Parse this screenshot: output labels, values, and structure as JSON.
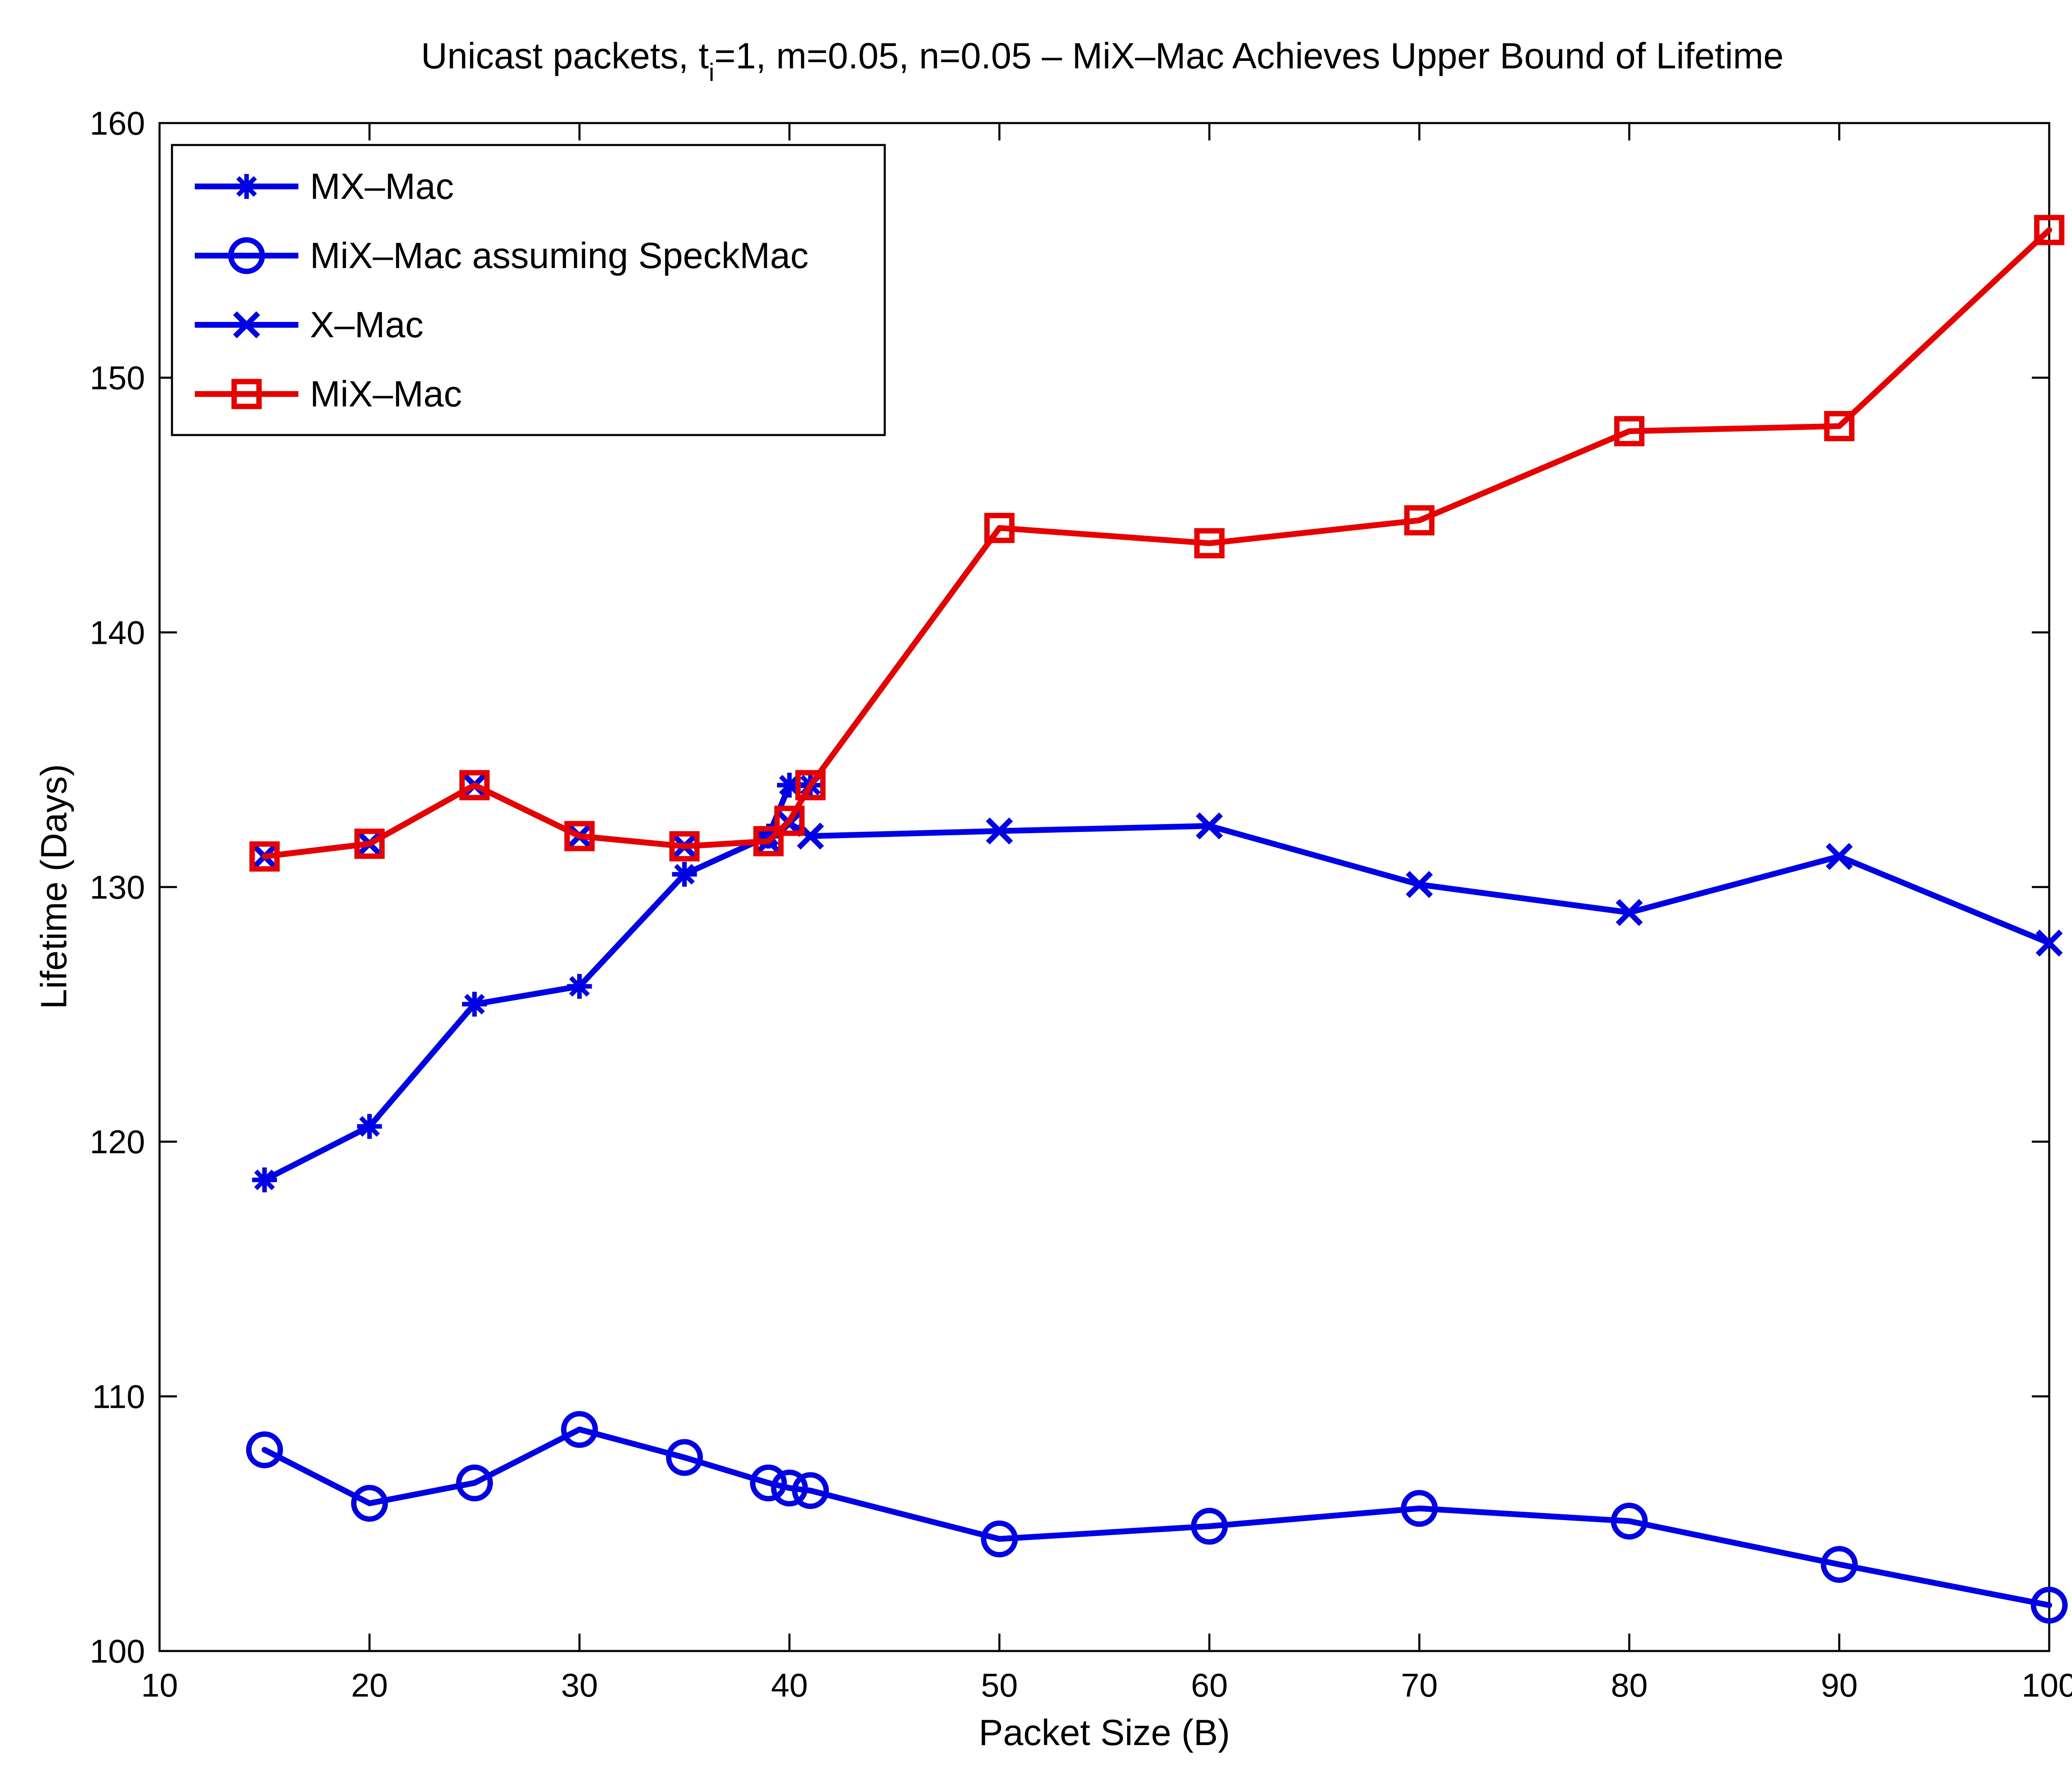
{
  "chart_data": {
    "type": "line",
    "title": "Unicast packets, t=1, m=0.05, n=0.05 – MiX–Mac Achieves Upper Bound of Lifetime",
    "title_parts": {
      "before": "Unicast packets, t",
      "subscript": "i",
      "after": "=1, m=0.05, n=0.05 – MiX–Mac Achieves Upper Bound of Lifetime"
    },
    "xlabel": "Packet Size (B)",
    "ylabel": "Lifetime (Days)",
    "xlim": [
      10,
      100
    ],
    "ylim": [
      100,
      160
    ],
    "xticks": [
      10,
      20,
      30,
      40,
      50,
      60,
      70,
      80,
      90,
      100
    ],
    "yticks": [
      100,
      110,
      120,
      130,
      140,
      150,
      160
    ],
    "grid": false,
    "legend_position": "top-left",
    "series": [
      {
        "name": "MX–Mac",
        "color": "#0000e6",
        "marker": "asterisk",
        "x": [
          15,
          20,
          25,
          30,
          35,
          39,
          40,
          41
        ],
        "y": [
          118.5,
          120.6,
          125.4,
          126.1,
          130.5,
          132.0,
          134.0,
          134.0
        ]
      },
      {
        "name": "MiX–Mac assuming SpeckMac",
        "color": "#0000e6",
        "marker": "circle",
        "x": [
          15,
          20,
          25,
          30,
          35,
          39,
          40,
          41,
          50,
          60,
          70,
          80,
          90,
          100
        ],
        "y": [
          107.9,
          105.8,
          106.6,
          108.7,
          107.6,
          106.6,
          106.4,
          106.3,
          104.4,
          104.9,
          105.6,
          105.1,
          103.4,
          101.8
        ]
      },
      {
        "name": "X–Mac",
        "color": "#0000e6",
        "marker": "x",
        "x": [
          15,
          20,
          25,
          30,
          35,
          39,
          40,
          41,
          50,
          60,
          70,
          80,
          90,
          100
        ],
        "y": [
          131.2,
          131.7,
          134.0,
          132.0,
          131.6,
          131.8,
          132.5,
          132.0,
          132.2,
          132.4,
          130.1,
          129.0,
          131.2,
          127.8
        ]
      },
      {
        "name": "MiX–Mac",
        "color": "#e60000",
        "marker": "square",
        "x": [
          15,
          20,
          25,
          30,
          35,
          39,
          40,
          41,
          50,
          60,
          70,
          80,
          90,
          100
        ],
        "y": [
          131.2,
          131.7,
          134.0,
          132.0,
          131.6,
          131.8,
          132.6,
          134.0,
          144.1,
          143.5,
          144.4,
          147.9,
          148.1,
          155.8
        ]
      }
    ]
  }
}
